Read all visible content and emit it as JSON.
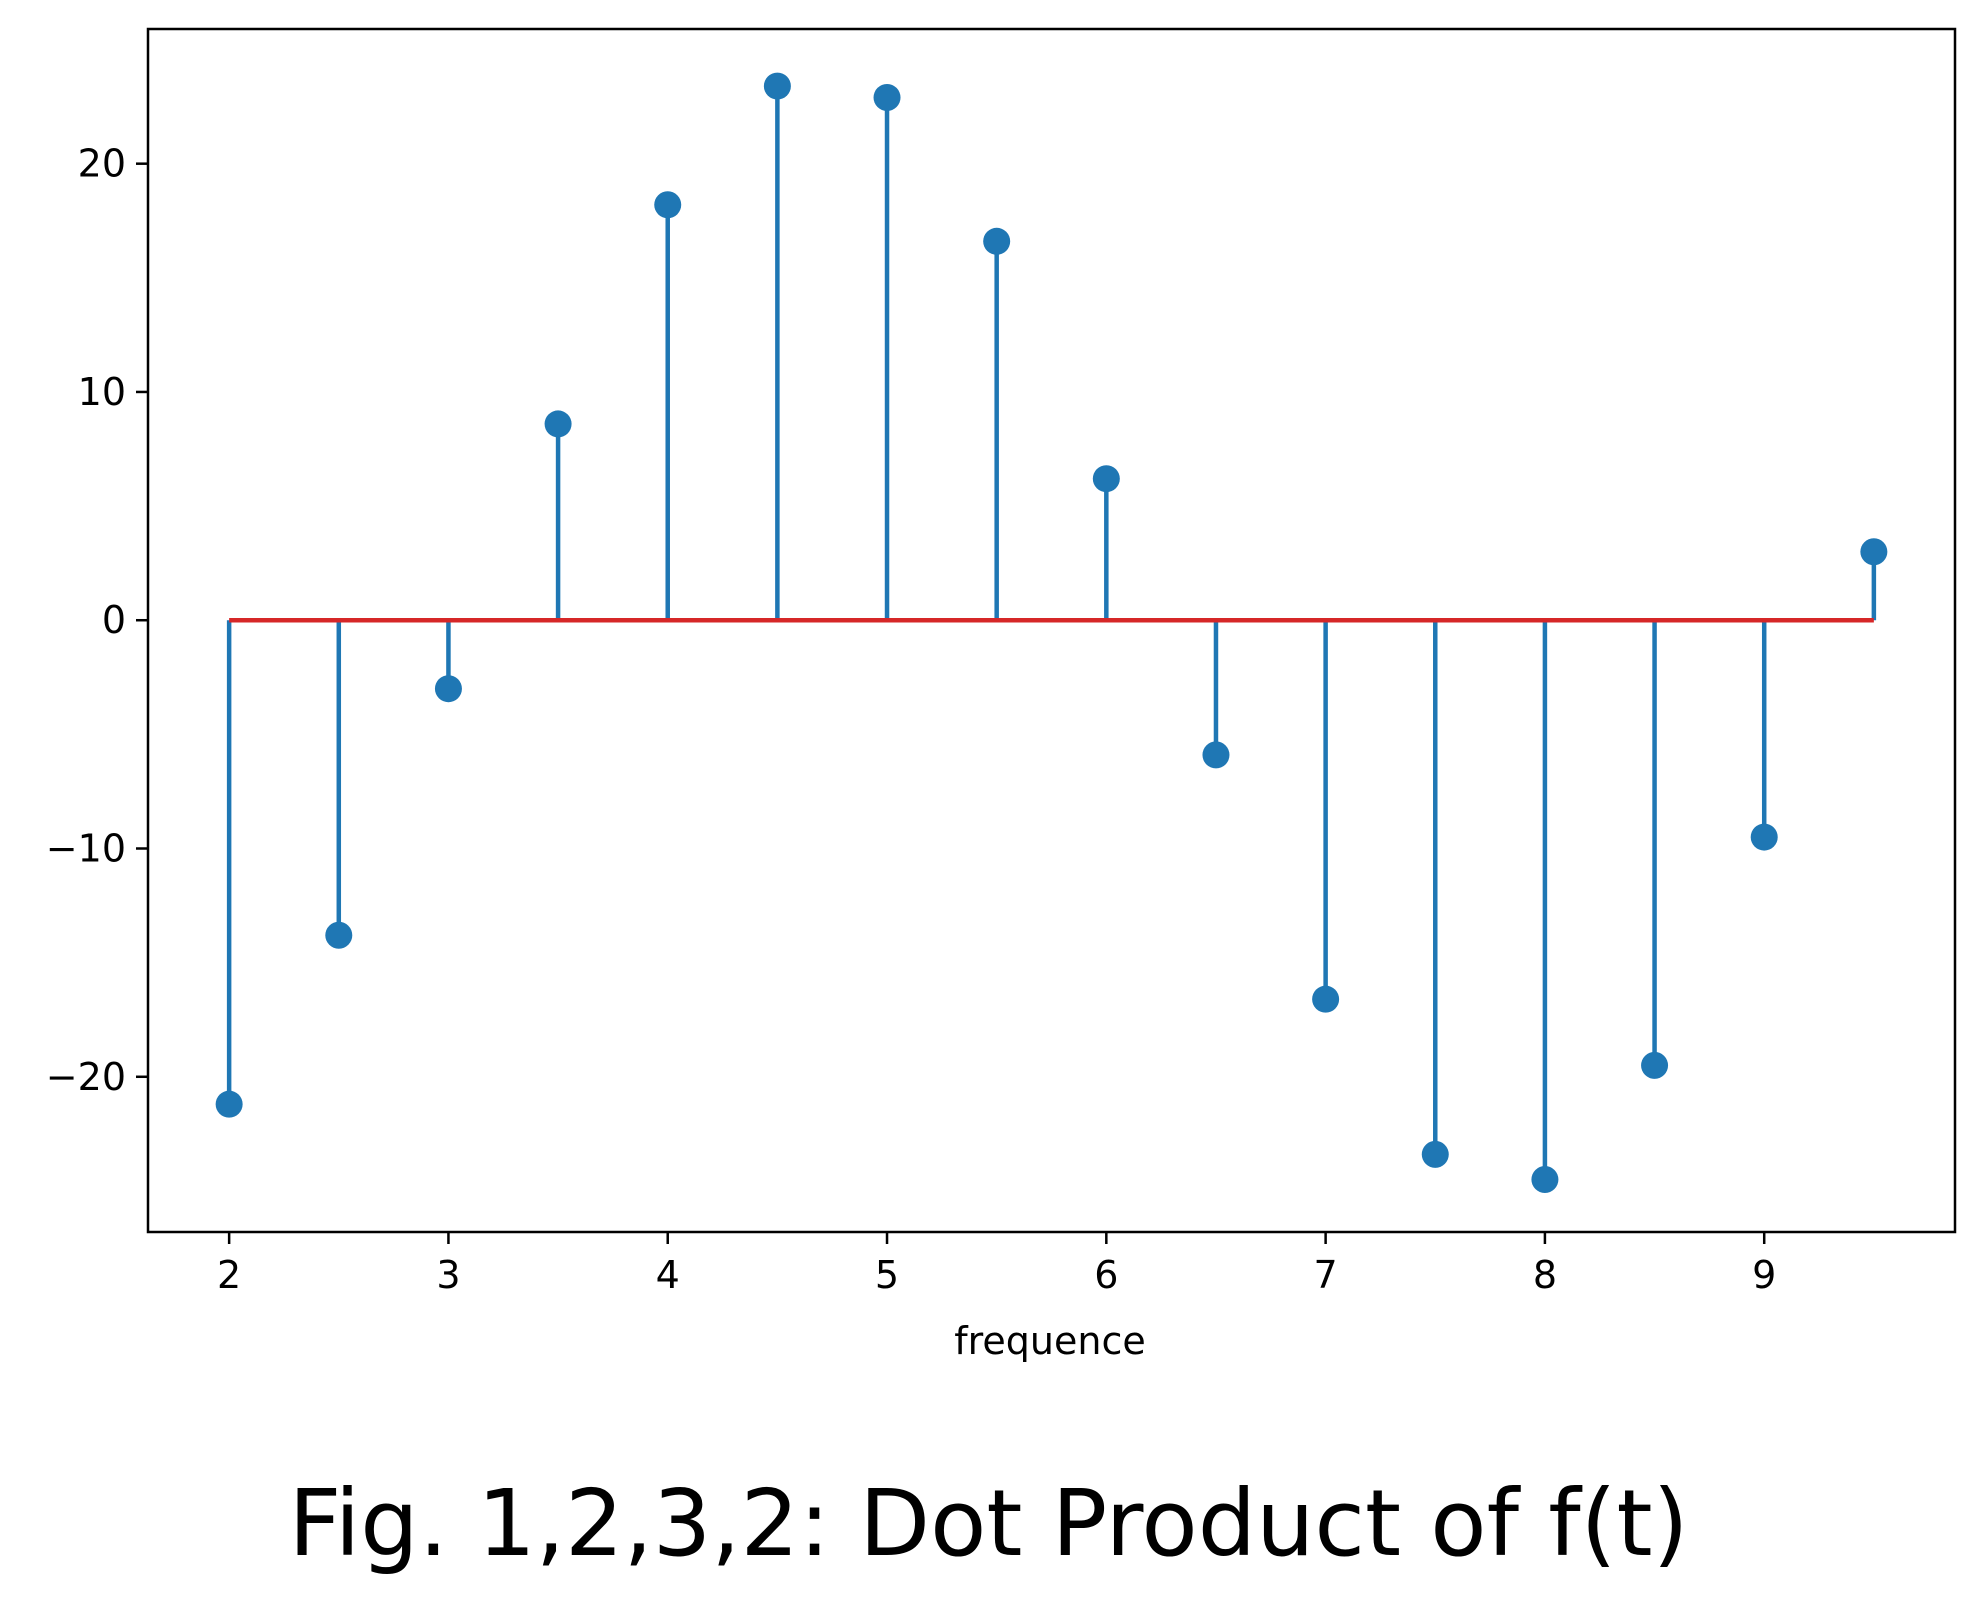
{
  "caption": "Fig. 1,2,3,2: Dot Product of f(t)",
  "chart_data": {
    "type": "stem",
    "title": "",
    "xlabel": "frequence",
    "ylabel": "",
    "xlim": [
      1.63,
      9.87
    ],
    "ylim": [
      -26.8,
      25.9
    ],
    "xticks": [
      2,
      3,
      4,
      5,
      6,
      7,
      8,
      9
    ],
    "xtick_labels": [
      "2",
      "3",
      "4",
      "5",
      "6",
      "7",
      "8",
      "9"
    ],
    "yticks": [
      -20,
      -10,
      0,
      10,
      20
    ],
    "ytick_labels": [
      "−20",
      "−10",
      "0",
      "10",
      "20"
    ],
    "baseline": 0,
    "grid": false,
    "colors": {
      "stem": "#1f77b4",
      "baseline": "#d62728",
      "axes": "#000000"
    },
    "series": [
      {
        "x": [
          2,
          2.5,
          3,
          3.5,
          4,
          4.5,
          5,
          5.5,
          6,
          6.5,
          7,
          7.5,
          8,
          8.5,
          9,
          9.5
        ],
        "y": [
          -21.2,
          -13.8,
          -3.0,
          8.6,
          18.2,
          23.4,
          22.9,
          16.6,
          6.2,
          -5.9,
          -16.6,
          -23.4,
          -24.5,
          -19.5,
          -9.5,
          3.0
        ]
      }
    ]
  }
}
